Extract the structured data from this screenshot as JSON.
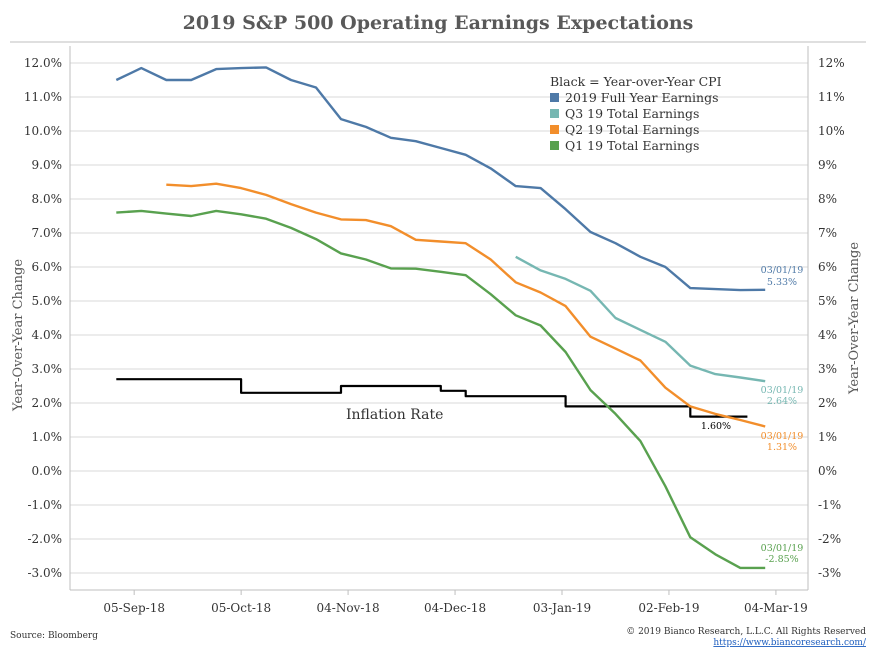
{
  "chart_data": {
    "type": "line",
    "title": "2019 S&P 500 Operating Earnings Expectations",
    "ylabel_left": "Year-Over-Year Change",
    "ylabel_right": "Year-Over-Year Change",
    "ylim": [
      -3.5,
      12.5
    ],
    "grid": true,
    "legend_position": "top-right",
    "legend_header": "Black = Year-over-Year CPI",
    "left_ticks": [
      "12.0%",
      "11.0%",
      "10.0%",
      "9.0%",
      "8.0%",
      "7.0%",
      "6.0%",
      "5.0%",
      "4.0%",
      "3.0%",
      "2.0%",
      "1.0%",
      "0.0%",
      "-1.0%",
      "-2.0%",
      "-3.0%"
    ],
    "right_ticks": [
      "12%",
      "11%",
      "10%",
      "9%",
      "8%",
      "7%",
      "6%",
      "5%",
      "4%",
      "3%",
      "2%",
      "1%",
      "0%",
      "-1%",
      "-2%",
      "-3%"
    ],
    "x_ticks": [
      "05-Sep-18",
      "05-Oct-18",
      "04-Nov-18",
      "04-Dec-18",
      "03-Jan-19",
      "02-Feb-19",
      "04-Mar-19"
    ],
    "x_dates": [
      "2018-08-31",
      "2018-09-07",
      "2018-09-14",
      "2018-09-21",
      "2018-09-28",
      "2018-10-05",
      "2018-10-12",
      "2018-10-19",
      "2018-10-26",
      "2018-11-02",
      "2018-11-09",
      "2018-11-16",
      "2018-11-23",
      "2018-11-30",
      "2018-12-07",
      "2018-12-14",
      "2018-12-21",
      "2018-12-28",
      "2019-01-04",
      "2019-01-11",
      "2019-01-18",
      "2019-01-25",
      "2019-02-01",
      "2019-02-08",
      "2019-02-15",
      "2019-02-22",
      "2019-03-01"
    ],
    "series": [
      {
        "name": "2019 Full Year Earnings",
        "color": "#4E79A7",
        "values": [
          11.5,
          11.85,
          11.5,
          11.5,
          11.82,
          11.85,
          11.87,
          11.5,
          11.28,
          10.35,
          10.12,
          9.8,
          9.7,
          9.5,
          9.3,
          8.9,
          8.38,
          8.32,
          7.7,
          7.03,
          6.7,
          6.3,
          6.0,
          5.38,
          5.35,
          5.32,
          5.33
        ]
      },
      {
        "name": "Q3 19 Total Earnings",
        "color": "#76B7B2",
        "values": [
          null,
          null,
          null,
          null,
          null,
          null,
          null,
          null,
          null,
          null,
          null,
          null,
          null,
          null,
          null,
          null,
          6.3,
          5.9,
          5.65,
          5.3,
          4.5,
          4.15,
          3.8,
          3.1,
          2.85,
          2.75,
          2.64
        ]
      },
      {
        "name": "Q2 19 Total Earnings",
        "color": "#F28E2B",
        "values": [
          null,
          null,
          8.42,
          8.38,
          8.45,
          8.32,
          8.12,
          7.85,
          7.6,
          7.4,
          7.38,
          7.2,
          6.8,
          6.75,
          6.7,
          6.22,
          5.55,
          5.25,
          4.85,
          3.95,
          3.6,
          3.25,
          2.45,
          1.9,
          1.68,
          1.5,
          1.31
        ]
      },
      {
        "name": "Q1 19 Total Earnings",
        "color": "#59A14F",
        "values": [
          7.6,
          7.65,
          7.57,
          7.5,
          7.65,
          7.55,
          7.42,
          7.15,
          6.82,
          6.4,
          6.22,
          5.96,
          5.95,
          5.86,
          5.76,
          5.2,
          4.58,
          4.28,
          3.5,
          2.38,
          1.68,
          0.88,
          -0.45,
          -1.95,
          -2.45,
          -2.85,
          -2.85
        ]
      },
      {
        "name": "Year-over-Year CPI",
        "color": "#000000",
        "values": [
          2.7,
          2.7,
          2.7,
          2.7,
          2.7,
          2.3,
          2.3,
          2.3,
          2.3,
          2.5,
          2.5,
          2.5,
          2.5,
          2.36,
          2.2,
          2.2,
          2.2,
          2.2,
          1.9,
          1.9,
          1.9,
          1.9,
          1.9,
          1.6,
          1.6,
          1.6,
          null
        ]
      }
    ],
    "annotations": {
      "inflation_label": "Inflation Rate",
      "cpi_end": "1.60%",
      "fy_date": "03/01/19",
      "fy_value": "5.33%",
      "q3_date": "03/01/19",
      "q3_value": "2.64%",
      "q2_date": "03/01/19",
      "q2_value": "1.31%",
      "q1_date": "03/01/19",
      "q1_value": "-2.85%"
    }
  },
  "footer": {
    "source": "Source: Bloomberg",
    "copyright": "© 2019 Bianco Research, L.L.C. All Rights Reserved",
    "url": "https://www.biancoresearch.com/"
  }
}
